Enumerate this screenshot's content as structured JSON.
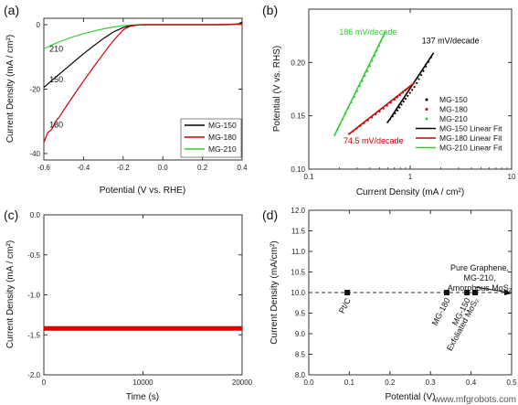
{
  "chart_data": [
    {
      "panel": "(a)",
      "type": "line",
      "xlabel": "Potential (V vs. RHE)",
      "ylabel": "Current Density (mA / cm²)",
      "xlim": [
        -0.6,
        0.4
      ],
      "ylim": [
        -42,
        2
      ],
      "xticks": [
        -0.6,
        -0.4,
        -0.2,
        0.0,
        0.2,
        0.4
      ],
      "xtick_labels": [
        "-0.6",
        "-0.4",
        "-0.2",
        "0.0",
        "0.2",
        "0.4"
      ],
      "yticks": [
        0,
        -20,
        -40
      ],
      "ytick_labels": [
        "0",
        "-20",
        "-40"
      ],
      "legend_position": "bottom-right",
      "series": [
        {
          "name": "MG-150",
          "color": "#000000",
          "x": [
            -0.6,
            -0.55,
            -0.5,
            -0.45,
            -0.4,
            -0.35,
            -0.3,
            -0.25,
            -0.2,
            -0.17,
            -0.15,
            -0.12,
            -0.1,
            -0.05,
            0.0,
            0.1,
            0.2,
            0.3,
            0.38,
            0.4
          ],
          "y": [
            -19.5,
            -16.8,
            -14.2,
            -11.6,
            -9.0,
            -6.6,
            -4.3,
            -2.3,
            -0.9,
            -0.4,
            -0.2,
            -0.05,
            0,
            0,
            0,
            0,
            0,
            0,
            0.2,
            0.8
          ]
        },
        {
          "name": "MG-180",
          "color": "#cc0000",
          "x": [
            -0.6,
            -0.58,
            -0.56,
            -0.54,
            -0.52,
            -0.5,
            -0.45,
            -0.4,
            -0.35,
            -0.3,
            -0.25,
            -0.2,
            -0.17,
            -0.15,
            -0.12,
            -0.1,
            0.0,
            0.1,
            0.2,
            0.3,
            0.4
          ],
          "y": [
            -36.5,
            -33.5,
            -32.5,
            -30.0,
            -28.5,
            -26.5,
            -22.0,
            -17.5,
            -13.2,
            -9.0,
            -5.0,
            -1.6,
            -0.6,
            -0.3,
            -0.05,
            0,
            0,
            0,
            0,
            0,
            0.3
          ]
        },
        {
          "name": "MG-210",
          "color": "#33cc33",
          "x": [
            -0.6,
            -0.55,
            -0.5,
            -0.45,
            -0.4,
            -0.35,
            -0.3,
            -0.25,
            -0.2,
            -0.15,
            -0.1,
            0.0,
            0.1,
            0.2,
            0.3,
            0.4
          ],
          "y": [
            -7.5,
            -6.0,
            -4.8,
            -3.7,
            -2.8,
            -2.0,
            -1.3,
            -0.7,
            -0.3,
            -0.1,
            0,
            0,
            0,
            0,
            0,
            0.1
          ]
        }
      ],
      "annotations": [
        {
          "text": "210",
          "x": -0.59,
          "y": -7.5
        },
        {
          "text": "150",
          "x": -0.59,
          "y": -17
        },
        {
          "text": "180",
          "x": -0.59,
          "y": -31
        }
      ]
    },
    {
      "panel": "(b)",
      "type": "scatter",
      "xscale": "log",
      "xlabel": "Current Density (mA / cm²)",
      "ylabel": "Potential (V vs. RHS)",
      "xlim": [
        0.1,
        10
      ],
      "ylim": [
        0.1,
        0.25
      ],
      "xticks": [
        0.1,
        1,
        10
      ],
      "xtick_labels": [
        "0.1",
        "1",
        "10"
      ],
      "yticks": [
        0.1,
        0.15,
        0.2
      ],
      "ytick_labels": [
        "0.10",
        "0.15",
        "0.20"
      ],
      "legend_position": "bottom-right",
      "series": [
        {
          "name": "MG-150",
          "color": "#000000",
          "x": [
            0.6,
            0.75,
            0.9,
            1.1,
            1.35,
            1.7
          ],
          "y": [
            0.144,
            0.155,
            0.166,
            0.177,
            0.192,
            0.209
          ]
        },
        {
          "name": "MG-180",
          "color": "#cc0000",
          "x": [
            0.25,
            0.35,
            0.5,
            0.7,
            0.9,
            1.1
          ],
          "y": [
            0.133,
            0.143,
            0.154,
            0.165,
            0.174,
            0.181
          ]
        },
        {
          "name": "MG-210",
          "color": "#33cc33",
          "x": [
            0.18,
            0.23,
            0.3,
            0.38,
            0.47,
            0.57
          ],
          "y": [
            0.132,
            0.152,
            0.173,
            0.192,
            0.211,
            0.229
          ]
        }
      ],
      "fit_lines": [
        {
          "name": "MG-150 Linear Fit",
          "color": "#000000",
          "x": [
            0.6,
            1.7
          ],
          "y": [
            0.144,
            0.209
          ]
        },
        {
          "name": "MG-180 Linear Fit",
          "color": "#cc0000",
          "x": [
            0.25,
            1.1
          ],
          "y": [
            0.133,
            0.181
          ]
        },
        {
          "name": "MG-210 Linear Fit",
          "color": "#33cc33",
          "x": [
            0.18,
            0.57
          ],
          "y": [
            0.132,
            0.229
          ]
        }
      ],
      "annotations": [
        {
          "text": "186 mV/decade",
          "color": "#33cc33",
          "x": 0.2,
          "y": 0.226
        },
        {
          "text": "137 mV/decade",
          "color": "#000000",
          "x": 1.3,
          "y": 0.218
        },
        {
          "text": "74.5 mV/decade",
          "color": "#cc0000",
          "x": 0.22,
          "y": 0.124
        }
      ]
    },
    {
      "panel": "(c)",
      "type": "line",
      "xlabel": "Time (s)",
      "ylabel": "Current Density (mA / cm²)",
      "xlim": [
        0,
        20000
      ],
      "ylim": [
        -2.0,
        0.0
      ],
      "xticks": [
        0,
        10000,
        20000
      ],
      "xtick_labels": [
        "0",
        "10000",
        "20000"
      ],
      "yticks": [
        0.0,
        -0.5,
        -1.0,
        -1.5,
        -2.0
      ],
      "ytick_labels": [
        "0.0",
        "-0.5",
        "-1.0",
        "-1.5",
        "-2.0"
      ],
      "series": [
        {
          "name": "",
          "color": "#dd0000",
          "x": [
            0,
            5000,
            10000,
            15000,
            20000
          ],
          "y": [
            -1.42,
            -1.42,
            -1.42,
            -1.42,
            -1.42
          ]
        }
      ]
    },
    {
      "panel": "(d)",
      "type": "scatter",
      "xlabel": "Potential (V)",
      "ylabel": "Current Density (mA/cm²)",
      "xlim": [
        0.0,
        0.5
      ],
      "ylim": [
        8.0,
        12.0
      ],
      "xticks": [
        0.0,
        0.1,
        0.2,
        0.3,
        0.4,
        0.5
      ],
      "xtick_labels": [
        "0.0",
        "0.1",
        "0.2",
        "0.3",
        "0.4",
        "0.5"
      ],
      "yticks": [
        8.0,
        8.5,
        9.0,
        9.5,
        10.0,
        10.5,
        11.0,
        11.5,
        12.0
      ],
      "ytick_labels": [
        "8.0",
        "8.5",
        "9.0",
        "9.5",
        "10.0",
        "10.5",
        "11.0",
        "11.5",
        "12.0"
      ],
      "reference_line_y": 10.0,
      "points": [
        {
          "label": "Pt/C",
          "x": 0.095,
          "y": 10.0
        },
        {
          "label": "MG-180",
          "x": 0.34,
          "y": 10.0
        },
        {
          "label": "MG-150",
          "x": 0.39,
          "y": 10.0
        },
        {
          "label": "Exfoliated MoS₂",
          "x": 0.41,
          "y": 10.0
        }
      ],
      "annotations": [
        {
          "lines": [
            "Pure Graphene,",
            "MG-210,",
            "Amorphous MoS₂"
          ]
        }
      ]
    }
  ],
  "watermark": "www.mfgrobots.com"
}
